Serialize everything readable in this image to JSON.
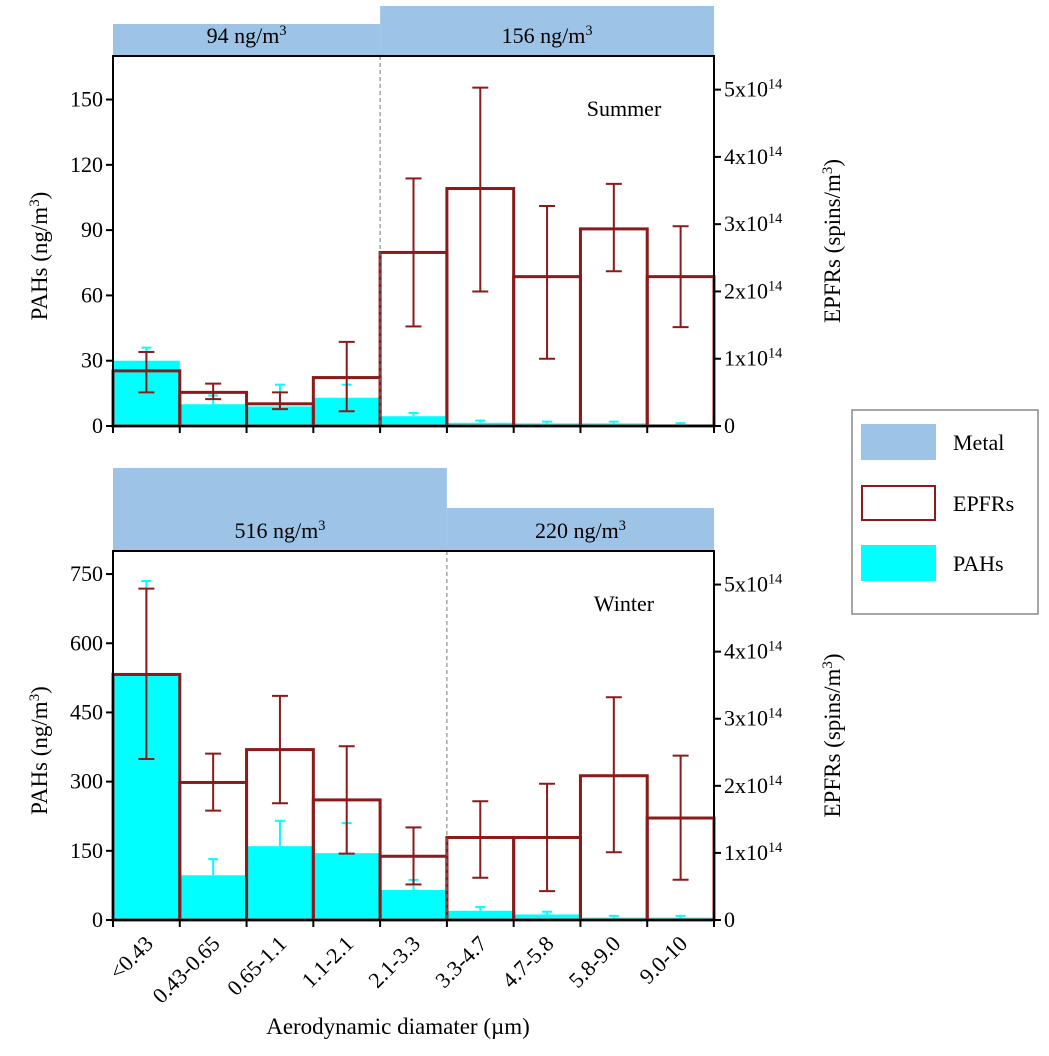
{
  "chart_data": [
    {
      "type": "bar",
      "season_label": "Summer",
      "ylabel": "PAHs (ng/m",
      "ylabel_sup": "3",
      "ylabel_tail": ")",
      "y2label": "EPFRs (spins/m",
      "y2label_sup": "3",
      "y2label_tail": ")",
      "ylim": [
        0,
        170
      ],
      "y_ticks": [
        0,
        30,
        60,
        90,
        120,
        150
      ],
      "y2lim": [
        0,
        5.5
      ],
      "y2_ticks": [
        {
          "value": 0,
          "text": "0",
          "exp": ""
        },
        {
          "value": 1,
          "text": "1x10",
          "exp": "14"
        },
        {
          "value": 2,
          "text": "2x10",
          "exp": "14"
        },
        {
          "value": 3,
          "text": "3x10",
          "exp": "14"
        },
        {
          "value": 4,
          "text": "4x10",
          "exp": "14"
        },
        {
          "value": 5,
          "text": "5x10",
          "exp": "14"
        }
      ],
      "metal_groups": [
        {
          "from": 0,
          "to": 4,
          "level": "low",
          "label": "94 ng/m",
          "sup": "3"
        },
        {
          "from": 4,
          "to": 9,
          "level": "high",
          "label": "156 ng/m",
          "sup": "3"
        }
      ],
      "divider_after_index": 4,
      "series": [
        {
          "name": "PAHs",
          "values": [
            30,
            10,
            9,
            13,
            4.5,
            1.5,
            1.2,
            1.2,
            0.8
          ],
          "err": [
            6,
            4,
            10,
            6,
            1.5,
            1,
            0.8,
            0.8,
            0.5
          ]
        },
        {
          "name": "EPFRs",
          "values": [
            0.82,
            0.5,
            0.33,
            0.72,
            2.58,
            3.53,
            2.22,
            2.93,
            2.22
          ],
          "err_low": [
            0.32,
            0.1,
            0.08,
            0.5,
            1.1,
            1.53,
            1.22,
            0.63,
            0.75
          ],
          "err_high": [
            0.28,
            0.13,
            0.17,
            0.53,
            1.1,
            1.5,
            1.05,
            0.67,
            0.75
          ]
        }
      ]
    },
    {
      "type": "bar",
      "season_label": "Winter",
      "ylabel": "PAHs (ng/m",
      "ylabel_sup": "3",
      "ylabel_tail": ")",
      "y2label": "EPFRs (spins/m",
      "y2label_sup": "3",
      "y2label_tail": ")",
      "ylim": [
        0,
        800
      ],
      "y_ticks": [
        0,
        150,
        300,
        450,
        600,
        750
      ],
      "y2lim": [
        0,
        5.5
      ],
      "y2_ticks": [
        {
          "value": 0,
          "text": "0",
          "exp": ""
        },
        {
          "value": 1,
          "text": "1x10",
          "exp": "14"
        },
        {
          "value": 2,
          "text": "2x10",
          "exp": "14"
        },
        {
          "value": 3,
          "text": "3x10",
          "exp": "14"
        },
        {
          "value": 4,
          "text": "4x10",
          "exp": "14"
        },
        {
          "value": 5,
          "text": "5x10",
          "exp": "14"
        }
      ],
      "metal_groups": [
        {
          "from": 0,
          "to": 5,
          "level": "high",
          "label": "516 ng/m",
          "sup": "3"
        },
        {
          "from": 5,
          "to": 9,
          "level": "low",
          "label": "220 ng/m",
          "sup": "3"
        }
      ],
      "divider_after_index": 5,
      "series": [
        {
          "name": "PAHs",
          "values": [
            530,
            97,
            160,
            145,
            65,
            20,
            12,
            5,
            5
          ],
          "err": [
            205,
            35,
            55,
            65,
            22,
            8,
            6,
            4,
            4
          ]
        },
        {
          "name": "EPFRs",
          "values": [
            3.66,
            2.05,
            2.54,
            1.79,
            0.95,
            1.23,
            1.23,
            2.15,
            1.52
          ],
          "err_low": [
            1.26,
            0.42,
            0.8,
            0.8,
            0.42,
            0.6,
            0.8,
            1.14,
            0.92
          ],
          "err_high": [
            1.28,
            0.43,
            0.8,
            0.8,
            0.43,
            0.54,
            0.8,
            1.17,
            0.93
          ]
        }
      ]
    }
  ],
  "categories": [
    "<0.43",
    "0.43-0.65",
    "0.65-1.1",
    "1.1-2.1",
    "2.1-3.3",
    "3.3-4.7",
    "4.7-5.8",
    "5.8-9.0",
    "9.0-10"
  ],
  "xlabel": "Aerodynamic diamater (µm)",
  "legend": {
    "placement": "right",
    "items": [
      {
        "label": "Metal",
        "swatch": "#9dc3e6",
        "style": "fill"
      },
      {
        "label": "EPFRs",
        "swatch": "#8b1a1a",
        "style": "outline"
      },
      {
        "label": "PAHs",
        "swatch": "#00ffff",
        "style": "fill"
      }
    ]
  },
  "colors": {
    "metal": "#9dc3e6",
    "epfr": "#8b1a1a",
    "pah": "#00ffff"
  }
}
